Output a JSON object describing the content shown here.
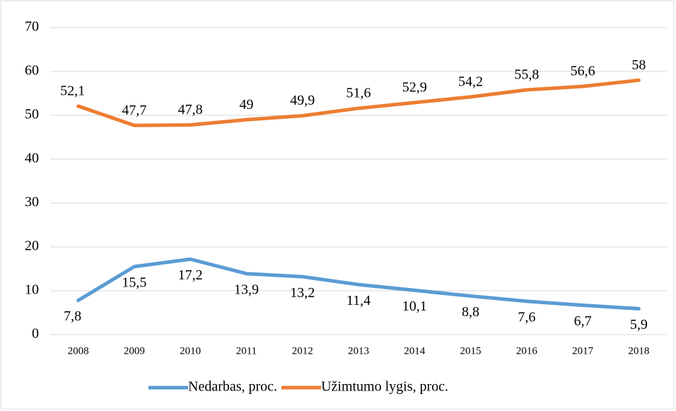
{
  "chart_data": {
    "type": "line",
    "categories": [
      "2008",
      "2009",
      "2010",
      "2011",
      "2012",
      "2013",
      "2014",
      "2015",
      "2016",
      "2017",
      "2018"
    ],
    "series": [
      {
        "name": "Nedarbas, proc.",
        "color": "#5b9bd5",
        "values": [
          7.8,
          15.5,
          17.2,
          13.9,
          13.2,
          11.4,
          10.1,
          8.8,
          7.6,
          6.7,
          5.9
        ],
        "value_labels": [
          "7,8",
          "15,5",
          "17,2",
          "13,9",
          "13,2",
          "11,4",
          "10,1",
          "8,8",
          "7,6",
          "6,7",
          "5,9"
        ]
      },
      {
        "name": "Užimtumo lygis, proc.",
        "color": "#ed7d31",
        "values": [
          52.1,
          47.7,
          47.8,
          49,
          49.9,
          51.6,
          52.9,
          54.2,
          55.8,
          56.6,
          58
        ],
        "value_labels": [
          "52,1",
          "47,7",
          "47,8",
          "49",
          "49,9",
          "51,6",
          "52,9",
          "54,2",
          "55,8",
          "56,6",
          "58"
        ]
      }
    ],
    "ylim": [
      0,
      70
    ],
    "yticks": [
      0,
      10,
      20,
      30,
      40,
      50,
      60,
      70
    ],
    "grid": true,
    "legend": "bottom"
  }
}
